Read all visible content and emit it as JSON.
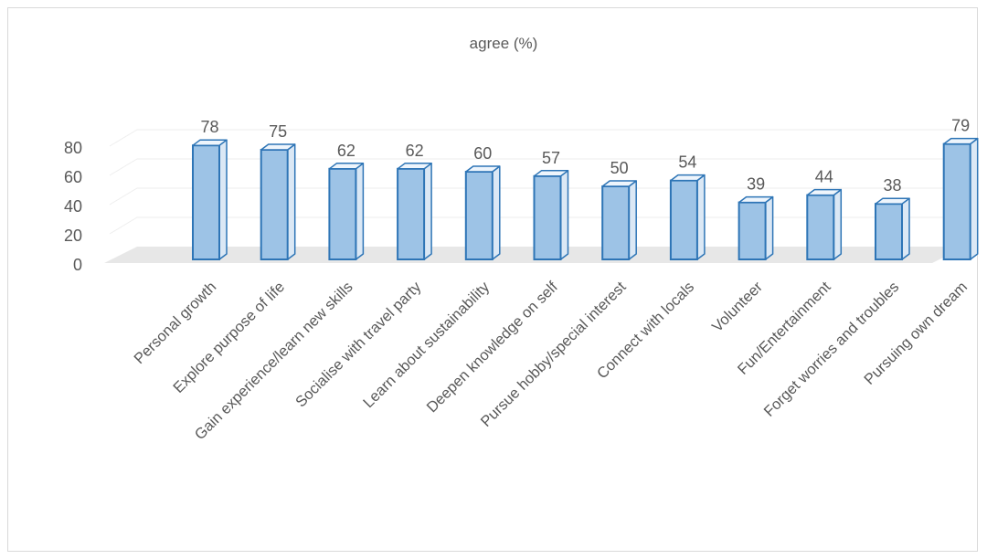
{
  "chart_data": {
    "type": "bar",
    "title": "agree (%)",
    "categories": [
      "Personal growth",
      "Explore purpose of life",
      "Gain experience/learn new skills",
      "Socialise with travel party",
      "Learn about sustainability",
      "Deepen knowledge on self",
      "Pursue hobby/special interest",
      "Connect with locals",
      "Volunteer",
      "Fun/Entertainment",
      "Forget worries and troubles",
      "Pursuing own dream"
    ],
    "values": [
      78,
      75,
      62,
      62,
      60,
      57,
      50,
      54,
      39,
      44,
      38,
      79
    ],
    "ylim": [
      0,
      80
    ],
    "yticks": [
      0,
      20,
      40,
      60,
      80
    ],
    "xlabel": "",
    "ylabel": "",
    "grid": true,
    "data_labels": true,
    "style": "3d-column",
    "colors": {
      "bar_fill": "#9dc3e6",
      "bar_edge": "#2e75b6",
      "floor": "#e7e7e7",
      "grid": "#eeeeee",
      "text": "#595959"
    }
  }
}
